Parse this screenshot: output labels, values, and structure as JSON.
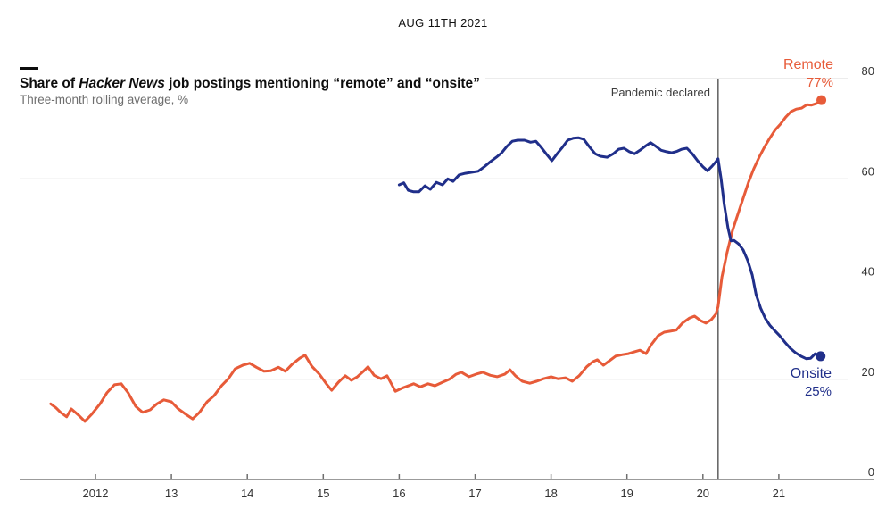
{
  "page": {
    "date_header": "AUG 11TH 2021"
  },
  "title": {
    "prefix": "Share of ",
    "italic": "Hacker News",
    "suffix": " job postings mentioning “remote” and “onsite”"
  },
  "subtitle": "Three-month rolling average, %",
  "annotations": {
    "pandemic": "Pandemic declared",
    "remote_label": "Remote",
    "remote_value": "77%",
    "onsite_label": "Onsite",
    "onsite_value": "25%"
  },
  "colors": {
    "remote": "#e75b39",
    "onsite": "#202f8a",
    "grid": "#d9d9d9",
    "axis": "#9b9b9b",
    "tick": "#6e6e6e",
    "tick_text": "#333333",
    "pandemic_line": "#5f5f5f",
    "title_text": "#0d0d0d",
    "subtitle_text": "#6e6e6e"
  },
  "chart_data": {
    "type": "line",
    "title": "Share of Hacker News job postings mentioning “remote” and “onsite”",
    "subtitle": "Three-month rolling average, %",
    "xlabel": "",
    "ylabel": "%",
    "ylim": [
      0,
      80
    ],
    "xlim": [
      2011.3,
      2021.75
    ],
    "grid": true,
    "legend_position": "line-end annotations",
    "y_ticks": [
      0,
      20,
      40,
      60,
      80
    ],
    "x_ticks": [
      {
        "year": 2012,
        "label": "2012"
      },
      {
        "year": 2013,
        "label": "13"
      },
      {
        "year": 2014,
        "label": "14"
      },
      {
        "year": 2015,
        "label": "15"
      },
      {
        "year": 2016,
        "label": "16"
      },
      {
        "year": 2017,
        "label": "17"
      },
      {
        "year": 2018,
        "label": "18"
      },
      {
        "year": 2019,
        "label": "19"
      },
      {
        "year": 2020,
        "label": "20"
      },
      {
        "year": 2021,
        "label": "21"
      }
    ],
    "pandemic_line_x": 2020.2,
    "series": [
      {
        "name": "Remote",
        "end_label": "77%",
        "color": "#e75b39",
        "points": [
          [
            2011.41,
            15.1
          ],
          [
            2011.48,
            14.3
          ],
          [
            2011.54,
            13.4
          ],
          [
            2011.62,
            12.5
          ],
          [
            2011.68,
            14.1
          ],
          [
            2011.78,
            12.8
          ],
          [
            2011.86,
            11.6
          ],
          [
            2011.95,
            13.0
          ],
          [
            2012.06,
            15.1
          ],
          [
            2012.15,
            17.3
          ],
          [
            2012.25,
            18.9
          ],
          [
            2012.34,
            19.1
          ],
          [
            2012.43,
            17.3
          ],
          [
            2012.53,
            14.6
          ],
          [
            2012.62,
            13.4
          ],
          [
            2012.72,
            13.9
          ],
          [
            2012.81,
            15.1
          ],
          [
            2012.9,
            15.9
          ],
          [
            2013.0,
            15.5
          ],
          [
            2013.09,
            14.1
          ],
          [
            2013.19,
            13.0
          ],
          [
            2013.28,
            12.1
          ],
          [
            2013.37,
            13.4
          ],
          [
            2013.47,
            15.5
          ],
          [
            2013.56,
            16.7
          ],
          [
            2013.66,
            18.7
          ],
          [
            2013.75,
            20.1
          ],
          [
            2013.84,
            22.1
          ],
          [
            2013.94,
            22.8
          ],
          [
            2014.03,
            23.2
          ],
          [
            2014.12,
            22.4
          ],
          [
            2014.22,
            21.6
          ],
          [
            2014.31,
            21.7
          ],
          [
            2014.41,
            22.4
          ],
          [
            2014.5,
            21.6
          ],
          [
            2014.59,
            23.0
          ],
          [
            2014.69,
            24.2
          ],
          [
            2014.76,
            24.8
          ],
          [
            2014.85,
            22.6
          ],
          [
            2014.95,
            21.0
          ],
          [
            2015.04,
            19.1
          ],
          [
            2015.11,
            17.8
          ],
          [
            2015.2,
            19.4
          ],
          [
            2015.29,
            20.7
          ],
          [
            2015.37,
            19.8
          ],
          [
            2015.45,
            20.5
          ],
          [
            2015.53,
            21.6
          ],
          [
            2015.59,
            22.5
          ],
          [
            2015.67,
            20.8
          ],
          [
            2015.76,
            20.1
          ],
          [
            2015.84,
            20.7
          ],
          [
            2015.95,
            17.6
          ],
          [
            2016.05,
            18.3
          ],
          [
            2016.19,
            19.1
          ],
          [
            2016.28,
            18.5
          ],
          [
            2016.38,
            19.1
          ],
          [
            2016.47,
            18.7
          ],
          [
            2016.57,
            19.4
          ],
          [
            2016.66,
            20.0
          ],
          [
            2016.75,
            21.0
          ],
          [
            2016.82,
            21.4
          ],
          [
            2016.92,
            20.5
          ],
          [
            2017.01,
            21.0
          ],
          [
            2017.1,
            21.4
          ],
          [
            2017.2,
            20.8
          ],
          [
            2017.29,
            20.5
          ],
          [
            2017.39,
            21.0
          ],
          [
            2017.46,
            21.9
          ],
          [
            2017.53,
            20.7
          ],
          [
            2017.62,
            19.6
          ],
          [
            2017.72,
            19.2
          ],
          [
            2017.81,
            19.6
          ],
          [
            2017.9,
            20.1
          ],
          [
            2018.0,
            20.5
          ],
          [
            2018.09,
            20.1
          ],
          [
            2018.19,
            20.3
          ],
          [
            2018.28,
            19.6
          ],
          [
            2018.37,
            20.7
          ],
          [
            2018.47,
            22.5
          ],
          [
            2018.55,
            23.5
          ],
          [
            2018.61,
            23.9
          ],
          [
            2018.69,
            22.8
          ],
          [
            2018.77,
            23.7
          ],
          [
            2018.85,
            24.6
          ],
          [
            2018.94,
            24.9
          ],
          [
            2019.02,
            25.1
          ],
          [
            2019.1,
            25.5
          ],
          [
            2019.17,
            25.8
          ],
          [
            2019.25,
            25.1
          ],
          [
            2019.32,
            26.9
          ],
          [
            2019.41,
            28.7
          ],
          [
            2019.49,
            29.4
          ],
          [
            2019.57,
            29.6
          ],
          [
            2019.65,
            29.8
          ],
          [
            2019.73,
            31.2
          ],
          [
            2019.82,
            32.2
          ],
          [
            2019.89,
            32.6
          ],
          [
            2019.97,
            31.7
          ],
          [
            2020.04,
            31.2
          ],
          [
            2020.11,
            31.9
          ],
          [
            2020.17,
            33.0
          ],
          [
            2020.2,
            34.5
          ],
          [
            2020.25,
            40.4
          ],
          [
            2020.32,
            45.4
          ],
          [
            2020.39,
            49.7
          ],
          [
            2020.46,
            52.9
          ],
          [
            2020.53,
            56.1
          ],
          [
            2020.6,
            59.3
          ],
          [
            2020.67,
            62.0
          ],
          [
            2020.74,
            64.3
          ],
          [
            2020.81,
            66.3
          ],
          [
            2020.88,
            68.1
          ],
          [
            2020.95,
            69.7
          ],
          [
            2021.02,
            70.9
          ],
          [
            2021.09,
            72.3
          ],
          [
            2021.16,
            73.4
          ],
          [
            2021.23,
            73.9
          ],
          [
            2021.3,
            74.1
          ],
          [
            2021.37,
            74.8
          ],
          [
            2021.43,
            74.7
          ],
          [
            2021.49,
            75.0
          ],
          [
            2021.56,
            75.7
          ]
        ]
      },
      {
        "name": "Onsite",
        "end_label": "25%",
        "color": "#202f8a",
        "points": [
          [
            2016.0,
            58.8
          ],
          [
            2016.06,
            59.2
          ],
          [
            2016.12,
            57.7
          ],
          [
            2016.19,
            57.4
          ],
          [
            2016.26,
            57.4
          ],
          [
            2016.34,
            58.6
          ],
          [
            2016.41,
            57.9
          ],
          [
            2016.49,
            59.3
          ],
          [
            2016.57,
            58.8
          ],
          [
            2016.64,
            60.0
          ],
          [
            2016.71,
            59.5
          ],
          [
            2016.79,
            60.8
          ],
          [
            2016.87,
            61.1
          ],
          [
            2016.95,
            61.3
          ],
          [
            2017.04,
            61.5
          ],
          [
            2017.12,
            62.4
          ],
          [
            2017.2,
            63.4
          ],
          [
            2017.28,
            64.3
          ],
          [
            2017.35,
            65.2
          ],
          [
            2017.42,
            66.5
          ],
          [
            2017.49,
            67.5
          ],
          [
            2017.56,
            67.7
          ],
          [
            2017.65,
            67.7
          ],
          [
            2017.73,
            67.3
          ],
          [
            2017.8,
            67.5
          ],
          [
            2017.87,
            66.3
          ],
          [
            2017.94,
            64.9
          ],
          [
            2018.01,
            63.6
          ],
          [
            2018.08,
            65.0
          ],
          [
            2018.15,
            66.3
          ],
          [
            2018.22,
            67.7
          ],
          [
            2018.29,
            68.1
          ],
          [
            2018.36,
            68.2
          ],
          [
            2018.43,
            67.9
          ],
          [
            2018.5,
            66.5
          ],
          [
            2018.58,
            65.0
          ],
          [
            2018.65,
            64.5
          ],
          [
            2018.74,
            64.3
          ],
          [
            2018.82,
            65.0
          ],
          [
            2018.89,
            65.9
          ],
          [
            2018.96,
            66.1
          ],
          [
            2019.03,
            65.4
          ],
          [
            2019.1,
            65.0
          ],
          [
            2019.17,
            65.7
          ],
          [
            2019.24,
            66.5
          ],
          [
            2019.31,
            67.2
          ],
          [
            2019.38,
            66.5
          ],
          [
            2019.45,
            65.7
          ],
          [
            2019.52,
            65.4
          ],
          [
            2019.59,
            65.2
          ],
          [
            2019.66,
            65.5
          ],
          [
            2019.72,
            65.9
          ],
          [
            2019.79,
            66.1
          ],
          [
            2019.86,
            65.0
          ],
          [
            2019.93,
            63.6
          ],
          [
            2020.0,
            62.4
          ],
          [
            2020.06,
            61.6
          ],
          [
            2020.12,
            62.5
          ],
          [
            2020.17,
            63.4
          ],
          [
            2020.2,
            64.0
          ],
          [
            2020.24,
            60.0
          ],
          [
            2020.28,
            55.0
          ],
          [
            2020.33,
            50.2
          ],
          [
            2020.37,
            47.6
          ],
          [
            2020.41,
            47.7
          ],
          [
            2020.47,
            47.0
          ],
          [
            2020.53,
            45.8
          ],
          [
            2020.59,
            43.7
          ],
          [
            2020.65,
            40.8
          ],
          [
            2020.7,
            36.9
          ],
          [
            2020.76,
            34.2
          ],
          [
            2020.82,
            32.2
          ],
          [
            2020.88,
            30.8
          ],
          [
            2020.94,
            29.8
          ],
          [
            2021.01,
            28.7
          ],
          [
            2021.08,
            27.4
          ],
          [
            2021.15,
            26.2
          ],
          [
            2021.22,
            25.3
          ],
          [
            2021.29,
            24.6
          ],
          [
            2021.36,
            24.1
          ],
          [
            2021.42,
            24.2
          ],
          [
            2021.48,
            25.1
          ],
          [
            2021.55,
            24.6
          ]
        ]
      }
    ]
  }
}
